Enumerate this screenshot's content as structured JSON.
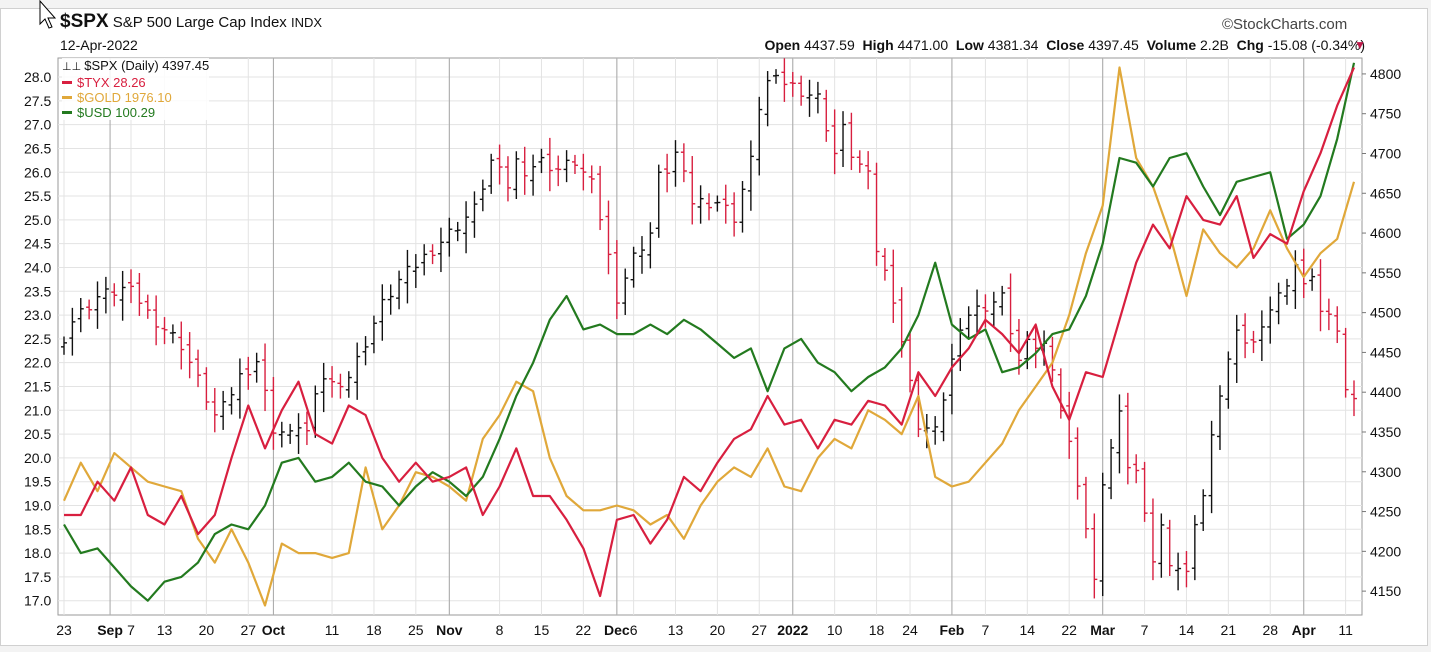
{
  "header": {
    "symbol": "$SPX",
    "name": "S&P 500 Large Cap Index",
    "exchange": "INDX",
    "watermark": "©StockCharts.com",
    "date": "12-Apr-2022",
    "open_label": "Open",
    "open": "4437.59",
    "high_label": "High",
    "high": "4471.00",
    "low_label": "Low",
    "low": "4381.34",
    "close_label": "Close",
    "close": "4397.45",
    "volume_label": "Volume",
    "volume": "2.2B",
    "chg_label": "Chg",
    "chg": "-15.08 (-0.34%)",
    "chg_marker": "▼"
  },
  "legend": {
    "spx": "$SPX (Daily) 4397.45",
    "tyx": "$TYX 28.26",
    "gold": "$GOLD 1976.10",
    "usd": "$USD 100.29"
  },
  "colors": {
    "tyx": "#d81f3f",
    "gold": "#e0a83a",
    "usd": "#237a1f",
    "spx_up": "#111111",
    "spx_down": "#d81f3f",
    "grid": "#e3e3e3",
    "month_line": "#a8a8a8"
  },
  "chart_data": {
    "type": "line",
    "title": "$SPX S&P 500 Large Cap Index INDX",
    "x_ticks": [
      {
        "label": "23",
        "bold": false,
        "at": 0
      },
      {
        "label": "Sep",
        "bold": true,
        "at": 5.5
      },
      {
        "label": "7",
        "bold": false,
        "at": 8
      },
      {
        "label": "13",
        "bold": false,
        "at": 12
      },
      {
        "label": "20",
        "bold": false,
        "at": 17
      },
      {
        "label": "27",
        "bold": false,
        "at": 22
      },
      {
        "label": "Oct",
        "bold": true,
        "at": 25
      },
      {
        "label": "11",
        "bold": false,
        "at": 32
      },
      {
        "label": "18",
        "bold": false,
        "at": 37
      },
      {
        "label": "25",
        "bold": false,
        "at": 42
      },
      {
        "label": "Nov",
        "bold": true,
        "at": 46
      },
      {
        "label": "8",
        "bold": false,
        "at": 52
      },
      {
        "label": "15",
        "bold": false,
        "at": 57
      },
      {
        "label": "22",
        "bold": false,
        "at": 62
      },
      {
        "label": "Dec",
        "bold": true,
        "at": 66
      },
      {
        "label": "6",
        "bold": false,
        "at": 68
      },
      {
        "label": "13",
        "bold": false,
        "at": 73
      },
      {
        "label": "20",
        "bold": false,
        "at": 78
      },
      {
        "label": "27",
        "bold": false,
        "at": 83
      },
      {
        "label": "2022",
        "bold": true,
        "at": 87
      },
      {
        "label": "10",
        "bold": false,
        "at": 92
      },
      {
        "label": "18",
        "bold": false,
        "at": 97
      },
      {
        "label": "24",
        "bold": false,
        "at": 101
      },
      {
        "label": "Feb",
        "bold": true,
        "at": 106
      },
      {
        "label": "7",
        "bold": false,
        "at": 110
      },
      {
        "label": "14",
        "bold": false,
        "at": 115
      },
      {
        "label": "22",
        "bold": false,
        "at": 120
      },
      {
        "label": "Mar",
        "bold": true,
        "at": 124
      },
      {
        "label": "7",
        "bold": false,
        "at": 129
      },
      {
        "label": "14",
        "bold": false,
        "at": 134
      },
      {
        "label": "21",
        "bold": false,
        "at": 139
      },
      {
        "label": "28",
        "bold": false,
        "at": 144
      },
      {
        "label": "Apr",
        "bold": true,
        "at": 148
      },
      {
        "label": "11",
        "bold": false,
        "at": 153
      }
    ],
    "month_starts": [
      5.5,
      25,
      46,
      66,
      87,
      106,
      124,
      148
    ],
    "left_axis": {
      "min": 16.7,
      "max": 28.4,
      "ticks": [
        "17.0",
        "17.5",
        "18.0",
        "18.5",
        "19.0",
        "19.5",
        "20.0",
        "20.5",
        "21.0",
        "21.5",
        "22.0",
        "22.5",
        "23.0",
        "23.5",
        "24.0",
        "24.5",
        "25.0",
        "25.5",
        "26.0",
        "26.5",
        "27.0",
        "27.5",
        "28.0"
      ]
    },
    "right_axis": {
      "min": 4120,
      "max": 4820,
      "ticks": [
        "4150",
        "4200",
        "4250",
        "4300",
        "4350",
        "4400",
        "4450",
        "4500",
        "4550",
        "4600",
        "4650",
        "4700",
        "4750",
        "4800"
      ]
    },
    "spx": {
      "name": "$SPX (Daily)",
      "axis": "right",
      "anchors_x": [
        0,
        1,
        4,
        7,
        8,
        9,
        10,
        11,
        14,
        18,
        19,
        21,
        23,
        25,
        27,
        28,
        29,
        30,
        31,
        32,
        34,
        35,
        38,
        40,
        45,
        46,
        49,
        51,
        53,
        54,
        55,
        57,
        59,
        61,
        63,
        64,
        66,
        68,
        70,
        71,
        72,
        73,
        75,
        78,
        80,
        82,
        83,
        84,
        86,
        88,
        90,
        92,
        93,
        94,
        96,
        97,
        99,
        101,
        102,
        104,
        106,
        108,
        110,
        112,
        114,
        115,
        117,
        119,
        121,
        122,
        123,
        124,
        125,
        126,
        127,
        128,
        129,
        130,
        131,
        132,
        133,
        134,
        135,
        136,
        137,
        138,
        139,
        140,
        142,
        143,
        145,
        147,
        148,
        149,
        150,
        151,
        152,
        153,
        154
      ],
      "anchors_close": [
        4470,
        4490,
        4520,
        4530,
        4525,
        4515,
        4500,
        4490,
        4460,
        4370,
        4380,
        4420,
        4440,
        4355,
        4345,
        4360,
        4350,
        4390,
        4420,
        4410,
        4420,
        4440,
        4510,
        4540,
        4590,
        4600,
        4630,
        4690,
        4660,
        4690,
        4680,
        4690,
        4680,
        4690,
        4660,
        4620,
        4520,
        4570,
        4600,
        4670,
        4680,
        4700,
        4640,
        4640,
        4620,
        4690,
        4760,
        4790,
        4790,
        4780,
        4770,
        4700,
        4730,
        4700,
        4670,
        4580,
        4520,
        4410,
        4360,
        4350,
        4440,
        4500,
        4510,
        4520,
        4440,
        4460,
        4460,
        4380,
        4290,
        4230,
        4160,
        4290,
        4330,
        4370,
        4310,
        4300,
        4240,
        4190,
        4230,
        4190,
        4180,
        4170,
        4240,
        4270,
        4340,
        4400,
        4440,
        4470,
        4460,
        4490,
        4520,
        4560,
        4530,
        4550,
        4500,
        4490,
        4480,
        4400,
        4400
      ]
    },
    "tyx": {
      "name": "$TYX",
      "axis": "left",
      "x": [
        0,
        2,
        4,
        6,
        8,
        10,
        12,
        14,
        16,
        18,
        20,
        22,
        24,
        26,
        28,
        30,
        32,
        34,
        36,
        38,
        40,
        42,
        44,
        46,
        48,
        50,
        52,
        54,
        56,
        58,
        60,
        62,
        64,
        66,
        68,
        70,
        72,
        74,
        76,
        78,
        80,
        82,
        84,
        86,
        88,
        90,
        92,
        94,
        96,
        98,
        100,
        102,
        104,
        106,
        108,
        110,
        112,
        114,
        116,
        118,
        120,
        122,
        124,
        126,
        128,
        130,
        132,
        134,
        136,
        138,
        140,
        142,
        144,
        146,
        148,
        150,
        152,
        154
      ],
      "values": [
        18.8,
        18.8,
        19.5,
        19.1,
        19.8,
        18.8,
        18.6,
        19.2,
        18.4,
        18.8,
        20.0,
        21.1,
        20.2,
        21.0,
        21.6,
        20.5,
        20.3,
        21.1,
        20.9,
        20.0,
        19.5,
        19.9,
        19.5,
        19.6,
        19.8,
        18.8,
        19.4,
        20.2,
        19.2,
        19.2,
        18.7,
        18.1,
        17.1,
        18.7,
        18.8,
        18.2,
        18.7,
        19.6,
        19.3,
        19.9,
        20.4,
        20.6,
        21.3,
        20.7,
        20.8,
        20.2,
        20.8,
        20.7,
        21.2,
        21.1,
        20.7,
        21.8,
        21.3,
        21.9,
        22.3,
        22.9,
        22.6,
        22.2,
        22.8,
        21.5,
        20.8,
        21.8,
        21.7,
        22.9,
        24.1,
        24.9,
        24.4,
        25.5,
        25.0,
        24.9,
        25.5,
        24.2,
        24.7,
        24.5,
        25.6,
        26.4,
        27.4,
        28.2
      ]
    },
    "gold": {
      "name": "$GOLD",
      "axis": "left",
      "x": [
        0,
        2,
        4,
        6,
        8,
        10,
        12,
        14,
        16,
        18,
        20,
        22,
        24,
        26,
        28,
        30,
        32,
        34,
        36,
        38,
        40,
        42,
        44,
        46,
        48,
        50,
        52,
        54,
        56,
        58,
        60,
        62,
        64,
        66,
        68,
        70,
        72,
        74,
        76,
        78,
        80,
        82,
        84,
        86,
        88,
        90,
        92,
        94,
        96,
        98,
        100,
        102,
        104,
        106,
        108,
        110,
        112,
        114,
        116,
        118,
        120,
        122,
        124,
        126,
        128,
        130,
        132,
        134,
        136,
        138,
        140,
        142,
        144,
        146,
        148,
        150,
        152,
        154
      ],
      "values": [
        19.1,
        19.9,
        19.3,
        20.1,
        19.8,
        19.5,
        19.4,
        19.3,
        18.3,
        17.8,
        18.5,
        17.8,
        16.9,
        18.2,
        18.0,
        18.0,
        17.9,
        18.0,
        19.8,
        18.5,
        19.0,
        19.7,
        19.6,
        19.4,
        19.1,
        20.4,
        20.9,
        21.6,
        21.4,
        20.0,
        19.2,
        18.9,
        18.9,
        19.0,
        18.9,
        18.6,
        18.8,
        18.3,
        19.0,
        19.5,
        19.8,
        19.6,
        20.2,
        19.4,
        19.3,
        20.0,
        20.4,
        20.2,
        21.0,
        20.8,
        20.5,
        21.3,
        19.6,
        19.4,
        19.5,
        19.9,
        20.3,
        21.0,
        21.5,
        22.0,
        23.0,
        24.3,
        25.3,
        28.2,
        26.3,
        25.7,
        24.7,
        23.4,
        24.8,
        24.3,
        24.0,
        24.4,
        25.2,
        24.4,
        23.8,
        24.3,
        24.6,
        25.8
      ]
    },
    "usd": {
      "name": "$USD",
      "axis": "left",
      "x": [
        0,
        2,
        4,
        6,
        8,
        10,
        12,
        14,
        16,
        18,
        20,
        22,
        24,
        26,
        28,
        30,
        32,
        34,
        36,
        38,
        40,
        42,
        44,
        46,
        48,
        50,
        52,
        54,
        56,
        58,
        60,
        62,
        64,
        66,
        68,
        70,
        72,
        74,
        76,
        78,
        80,
        82,
        84,
        86,
        88,
        90,
        92,
        94,
        96,
        98,
        100,
        102,
        104,
        106,
        108,
        110,
        112,
        114,
        116,
        118,
        120,
        122,
        124,
        126,
        128,
        130,
        132,
        134,
        136,
        138,
        140,
        142,
        144,
        146,
        148,
        150,
        152,
        154
      ],
      "values": [
        18.6,
        18.0,
        18.1,
        17.7,
        17.3,
        17.0,
        17.4,
        17.5,
        17.8,
        18.4,
        18.6,
        18.5,
        19.0,
        19.9,
        20.0,
        19.5,
        19.6,
        19.9,
        19.5,
        19.4,
        19.0,
        19.4,
        19.7,
        19.5,
        19.2,
        19.6,
        20.4,
        21.3,
        22.0,
        22.9,
        23.4,
        22.7,
        22.8,
        22.6,
        22.6,
        22.8,
        22.6,
        22.9,
        22.7,
        22.4,
        22.1,
        22.3,
        21.4,
        22.3,
        22.5,
        22.0,
        21.8,
        21.4,
        21.7,
        21.9,
        22.3,
        23.0,
        24.1,
        22.8,
        22.5,
        22.7,
        21.8,
        21.9,
        22.2,
        22.6,
        22.7,
        23.4,
        24.5,
        26.3,
        26.2,
        25.7,
        26.3,
        26.4,
        25.7,
        25.1,
        25.8,
        25.9,
        26.0,
        24.6,
        24.9,
        25.5,
        26.7,
        28.3
      ]
    }
  }
}
